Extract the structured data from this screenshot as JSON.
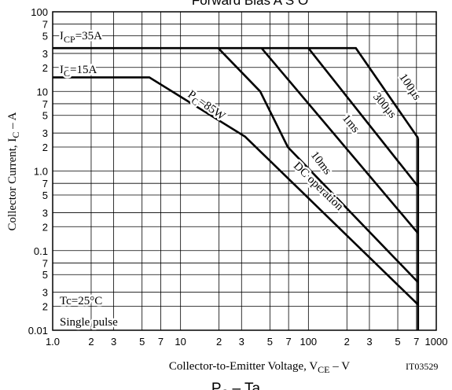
{
  "chart_data": {
    "type": "line",
    "title": "Forward Bias A S O",
    "bottom_title": {
      "text": "P",
      "sub": "C",
      "tail": " – Ta"
    },
    "x_label": {
      "text": "Collector-to-Emitter Voltage, V",
      "sub": "CE",
      "tail": " – V"
    },
    "y_label": {
      "text": "Collector Current, I",
      "sub": "C",
      "tail": " – A"
    },
    "figure_id": "IT03529",
    "log_x": true,
    "log_y": true,
    "grid": true,
    "xlim": [
      1,
      1000
    ],
    "ylim": [
      0.01,
      100
    ],
    "xticks": [
      {
        "value": 1,
        "label": "1.0"
      },
      2,
      3,
      5,
      7,
      10,
      {
        "value": 20,
        "label": "2"
      },
      {
        "value": 30,
        "label": "3"
      },
      {
        "value": 50,
        "label": "5"
      },
      {
        "value": 70,
        "label": "7"
      },
      100,
      {
        "value": 200,
        "label": "2"
      },
      {
        "value": 300,
        "label": "3"
      },
      {
        "value": 500,
        "label": "5"
      },
      {
        "value": 700,
        "label": "7"
      },
      1000
    ],
    "yticks": [
      100,
      {
        "value": 70,
        "label": "7"
      },
      {
        "value": 50,
        "label": "5"
      },
      {
        "value": 30,
        "label": "3"
      },
      {
        "value": 20,
        "label": "2"
      },
      10,
      7,
      5,
      3,
      2,
      {
        "value": 1,
        "label": "1.0"
      },
      {
        "value": 0.7,
        "label": "7"
      },
      {
        "value": 0.5,
        "label": "5"
      },
      {
        "value": 0.3,
        "label": "3"
      },
      {
        "value": 0.2,
        "label": "2"
      },
      0.1,
      {
        "value": 0.07,
        "label": "7"
      },
      {
        "value": 0.05,
        "label": "5"
      },
      {
        "value": 0.03,
        "label": "3"
      },
      {
        "value": 0.02,
        "label": "2"
      },
      0.01
    ],
    "series": [
      {
        "name": "100µs",
        "color": "#000000",
        "x": [
          1,
          235,
          720
        ],
        "values": [
          35,
          35,
          2.6
        ]
      },
      {
        "name": "300µs",
        "color": "#000000",
        "x": [
          100,
          720
        ],
        "values": [
          35,
          0.64
        ]
      },
      {
        "name": "1ms",
        "color": "#000000",
        "x": [
          43,
          720
        ],
        "values": [
          35,
          0.165
        ]
      },
      {
        "name": "10ms",
        "color": "#000000",
        "x": [
          19.7,
          42,
          69,
          720
        ],
        "values": [
          35,
          10,
          2,
          0.04
        ]
      },
      {
        "name": "DC operation",
        "color": "#000000",
        "x": [
          1,
          5.7,
          32,
          720
        ],
        "values": [
          15,
          15,
          2.7,
          0.021
        ]
      },
      {
        "color": "#000000",
        "x": [
          720,
          720
        ],
        "values": [
          2.6,
          0.01
        ]
      }
    ],
    "annotations": [
      {
        "text": "I",
        "sub": "CP",
        "tail": "=35A"
      },
      {
        "text": "I",
        "sub": "C",
        "tail": "=15A"
      },
      {
        "text": "P",
        "sub": "C",
        "tail": "=85W"
      },
      {
        "text": "Tc=25°C"
      },
      {
        "text": "Single pulse"
      }
    ]
  }
}
